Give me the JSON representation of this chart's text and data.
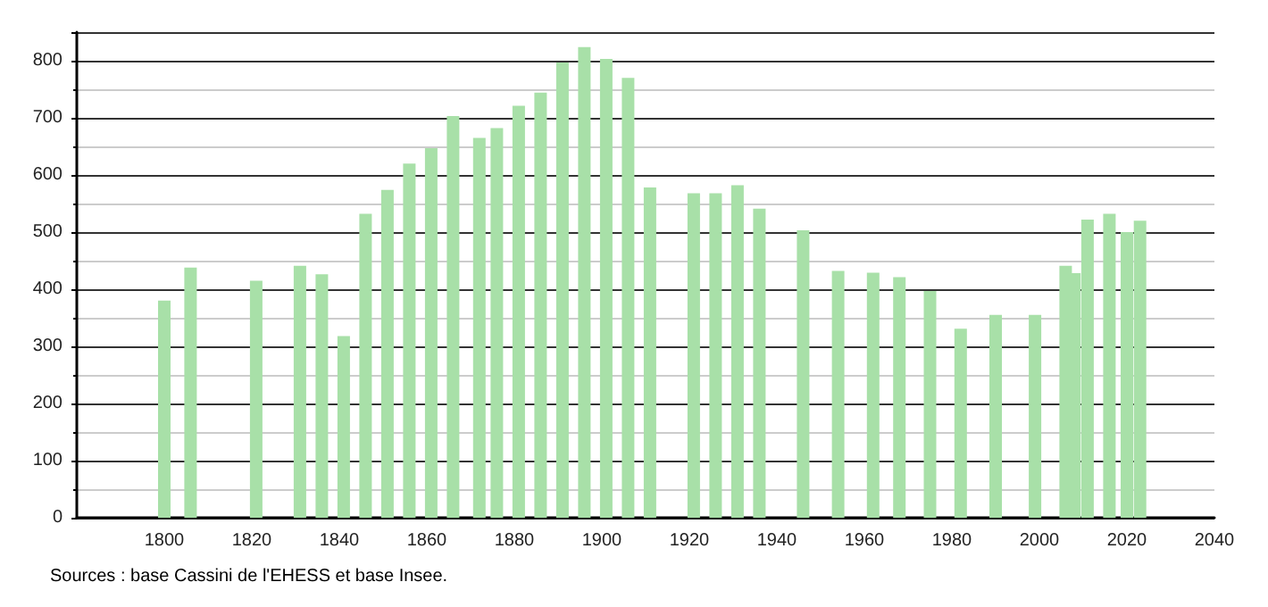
{
  "chart_data": {
    "type": "bar",
    "x": [
      1800,
      1806,
      1821,
      1831,
      1836,
      1841,
      1846,
      1851,
      1856,
      1861,
      1866,
      1872,
      1876,
      1881,
      1886,
      1891,
      1896,
      1901,
      1906,
      1911,
      1921,
      1926,
      1931,
      1936,
      1946,
      1954,
      1962,
      1968,
      1975,
      1982,
      1990,
      1999,
      2006,
      2008,
      2011,
      2016,
      2020,
      2023
    ],
    "values": [
      380,
      438,
      415,
      441,
      426,
      318,
      532,
      574,
      620,
      647,
      703,
      665,
      682,
      721,
      744,
      797,
      824,
      803,
      770,
      578,
      568,
      568,
      582,
      541,
      503,
      432,
      429,
      421,
      397,
      331,
      355,
      355,
      441,
      428,
      522,
      532,
      500,
      520
    ],
    "color": "#a8e0a8",
    "xlim": [
      1780,
      2040
    ],
    "xticks": [
      1800,
      1820,
      1840,
      1860,
      1880,
      1900,
      1920,
      1940,
      1960,
      1980,
      2000,
      2020,
      2040
    ],
    "ylim": [
      0,
      850
    ],
    "yticks": [
      0,
      100,
      200,
      300,
      400,
      500,
      600,
      700,
      800
    ],
    "grid": "y",
    "annotations": [
      "Sources : base Cassini de l'EHESS et base Insee."
    ]
  }
}
